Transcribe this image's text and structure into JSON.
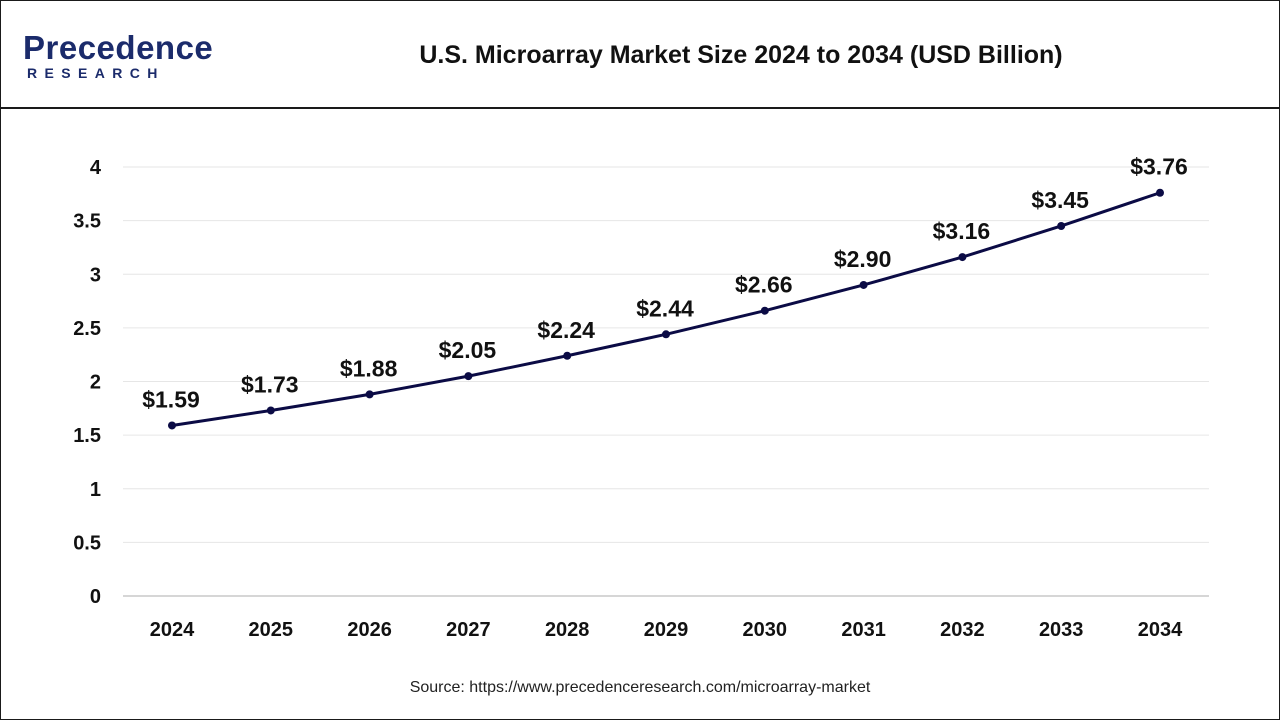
{
  "brand": {
    "name_main": "Precedence",
    "name_sub": "RESEARCH",
    "color": "#1b2b6b"
  },
  "source_text": "Source: https://www.precedenceresearch.com/microarray-market",
  "chart_data": {
    "type": "line",
    "title": "U.S. Microarray Market Size 2024 to 2034 (USD Billion)",
    "xlabel": "",
    "ylabel": "",
    "categories": [
      "2024",
      "2025",
      "2026",
      "2027",
      "2028",
      "2029",
      "2030",
      "2031",
      "2032",
      "2033",
      "2034"
    ],
    "series": [
      {
        "values": [
          1.59,
          1.73,
          1.88,
          2.05,
          2.24,
          2.44,
          2.66,
          2.9,
          3.16,
          3.45,
          3.76
        ],
        "labels": [
          "$1.59",
          "$1.73",
          "$1.88",
          "$2.05",
          "$2.24",
          "$2.44",
          "$2.66",
          "$2.90",
          "$3.16",
          "$3.45",
          "$3.76"
        ],
        "color": "#0b0b45"
      }
    ],
    "ylim": [
      0,
      4
    ],
    "yticks": [
      "0",
      "0.5",
      "1",
      "1.5",
      "2",
      "2.5",
      "3",
      "3.5",
      "4"
    ],
    "grid": true,
    "legend": "none"
  }
}
